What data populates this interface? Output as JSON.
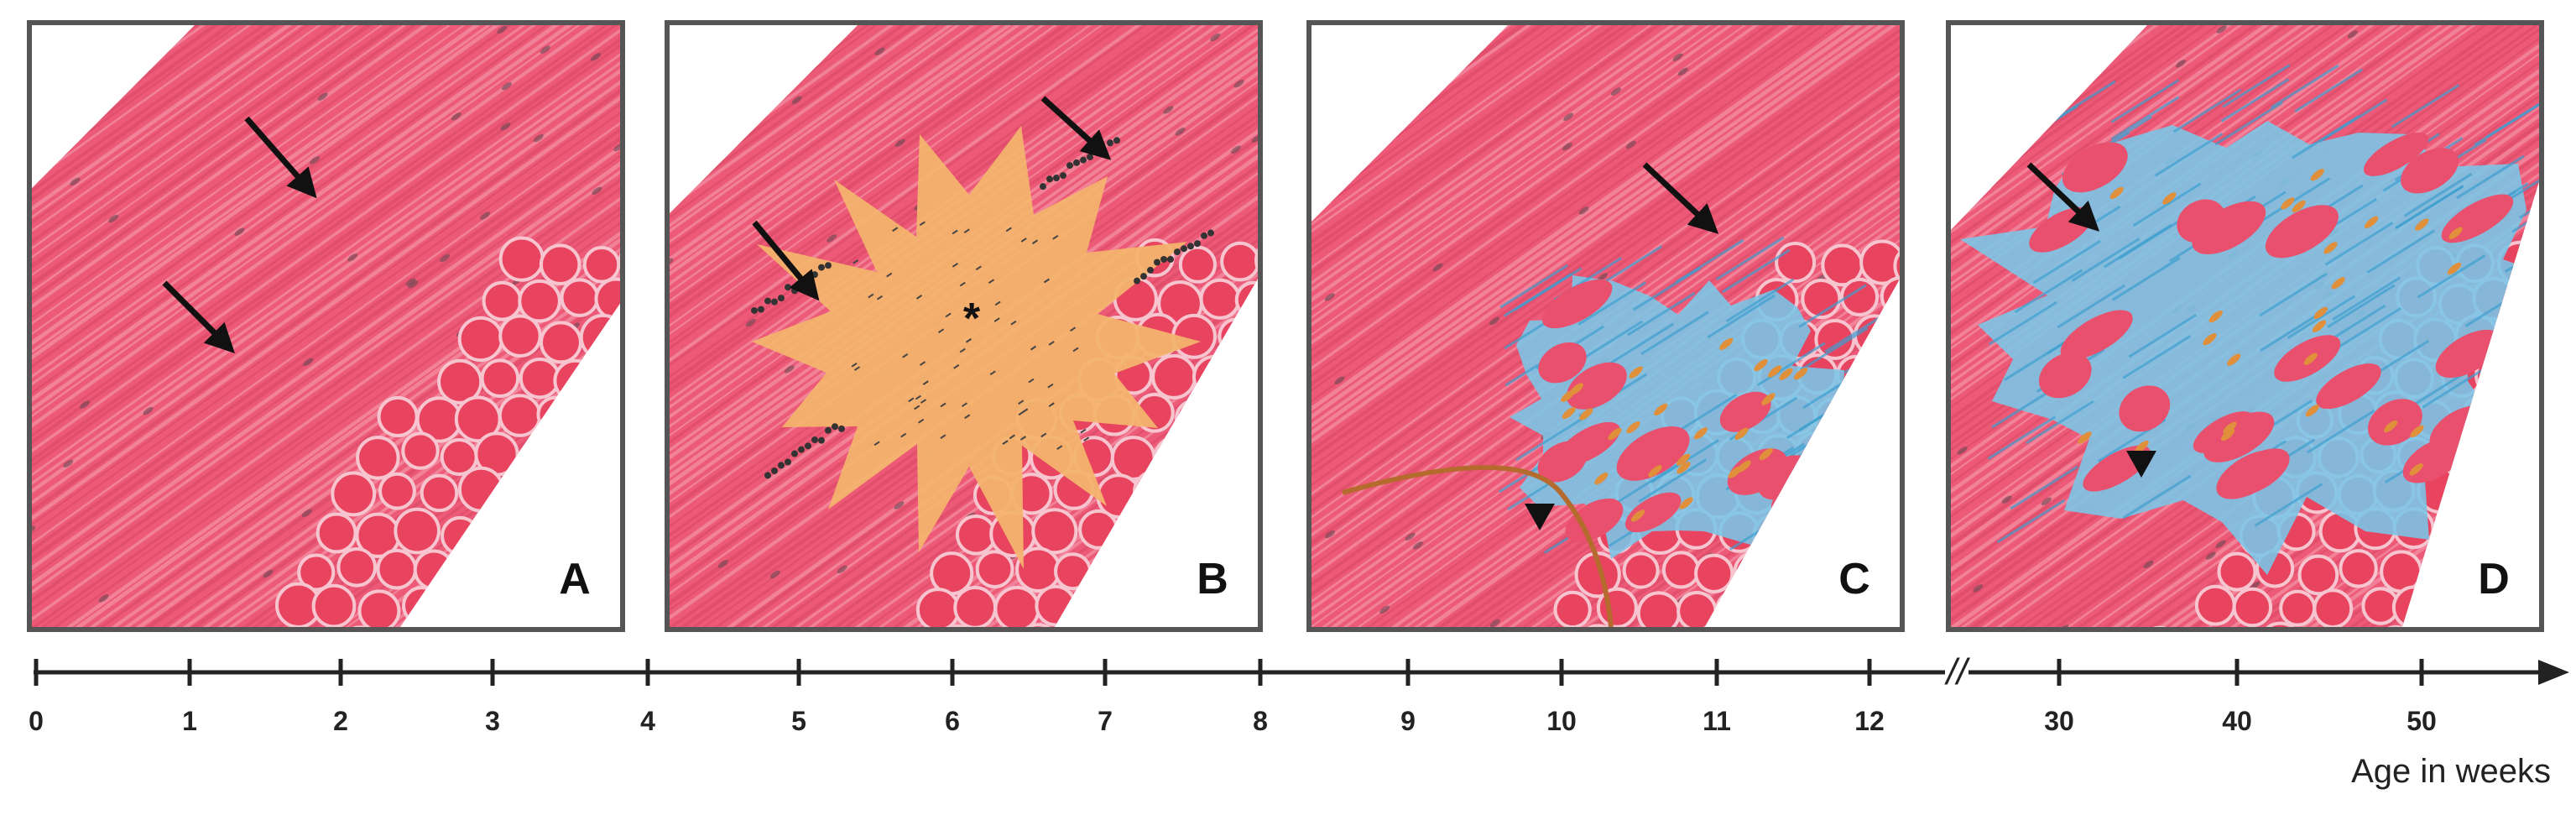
{
  "panels": [
    {
      "label": "A"
    },
    {
      "label": "B",
      "annotation": "*"
    },
    {
      "label": "C"
    },
    {
      "label": "D"
    }
  ],
  "timeline": {
    "ticks": [
      "0",
      "1",
      "2",
      "3",
      "4",
      "5",
      "6",
      "7",
      "8",
      "9",
      "10",
      "11",
      "12",
      "30",
      "40",
      "50"
    ],
    "break": "//",
    "axis_label": "Age in weeks"
  }
}
